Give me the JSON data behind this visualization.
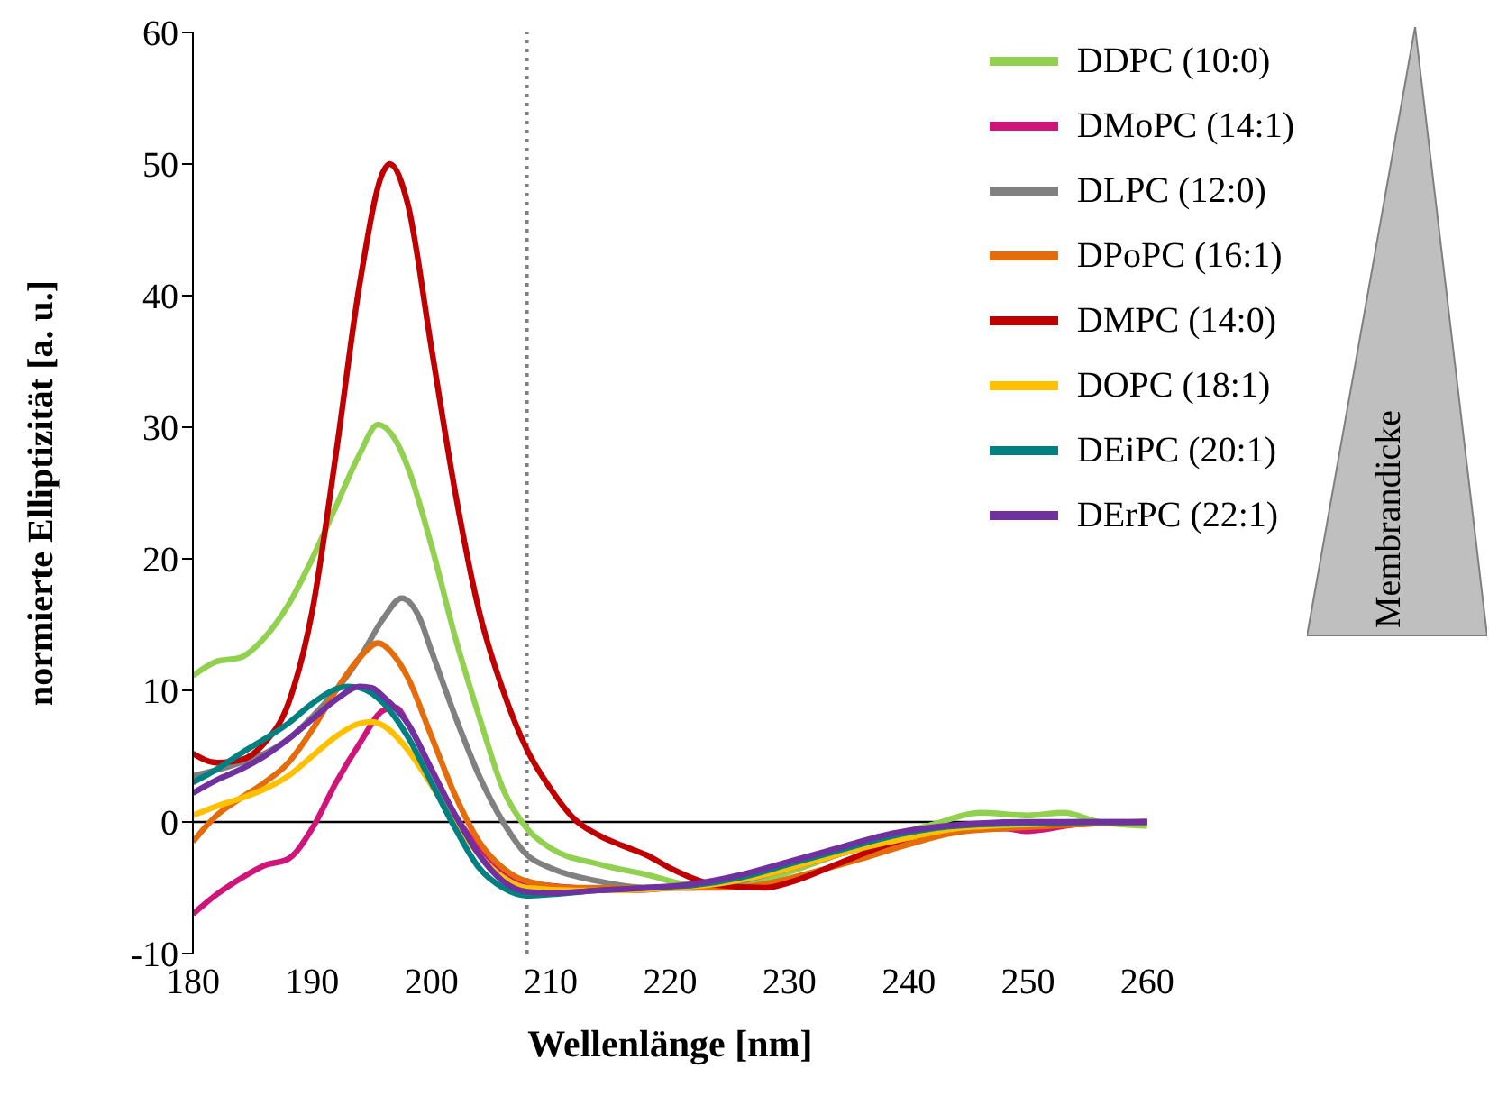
{
  "chart_data": {
    "type": "line",
    "xlabel": "Wellenlänge [nm]",
    "ylabel": "normierte Elliptizität [a. u.]",
    "xlim": [
      180,
      260
    ],
    "xticks": [
      180,
      190,
      200,
      210,
      220,
      230,
      240,
      250,
      260
    ],
    "ylim": [
      -10,
      60
    ],
    "yticks": [
      -10,
      0,
      10,
      20,
      30,
      40,
      50,
      60
    ],
    "grid": false,
    "legend": "top right",
    "marker": "none",
    "line_style": "solid",
    "ref_lines": [
      {
        "axis": "y",
        "value": 0,
        "color": "#000000",
        "line_style": "solid"
      },
      {
        "axis": "x",
        "value": 208,
        "color": "#808080",
        "line_style": "dotted"
      }
    ],
    "annotations": [
      "Membrandicke"
    ],
    "series": [
      {
        "name": "DDPC (10:0)",
        "color": "#92d050",
        "x": [
          180,
          182,
          184,
          186,
          188,
          190,
          192,
          194,
          195.5,
          197,
          198,
          200,
          202,
          204,
          206,
          208,
          210,
          214,
          218,
          222,
          226,
          230,
          234,
          238,
          242,
          246,
          250,
          253,
          256,
          260
        ],
        "values": [
          11.1,
          12.2,
          12.5,
          14,
          16.5,
          20,
          24,
          28,
          30.2,
          29,
          27,
          21,
          14,
          8,
          2.5,
          -0.5,
          -2,
          -3.2,
          -4,
          -4.8,
          -4.8,
          -3.8,
          -2.5,
          -1.2,
          -0.2,
          0.7,
          0.5,
          0.7,
          0,
          -0.3
        ]
      },
      {
        "name": "DMoPC (14:1)",
        "color": "#d0157a",
        "x": [
          180,
          182,
          184,
          186,
          188,
          190,
          192,
          194,
          196,
          197,
          198,
          200,
          202,
          204,
          206,
          208,
          212,
          216,
          220,
          224,
          228,
          232,
          236,
          240,
          244,
          248,
          250,
          254,
          260
        ],
        "values": [
          -7,
          -5.5,
          -4.3,
          -3.3,
          -2.8,
          -0.5,
          3,
          6,
          8.5,
          8.7,
          7.5,
          4,
          0.5,
          -2,
          -3.8,
          -4.6,
          -5,
          -5.2,
          -5,
          -4.5,
          -4,
          -3,
          -2,
          -1.2,
          -0.6,
          -0.5,
          -0.7,
          -0.2,
          0
        ]
      },
      {
        "name": "DLPC (12:0)",
        "color": "#808080",
        "x": [
          180,
          184,
          186,
          188,
          190,
          192,
          194,
          196,
          197.5,
          199,
          200,
          202,
          204,
          206,
          208,
          210,
          214,
          218,
          222,
          226,
          230,
          234,
          238,
          242,
          246,
          250,
          254,
          260
        ],
        "values": [
          3.5,
          4.5,
          5.2,
          6.3,
          8,
          10,
          12.5,
          15.5,
          17,
          15.5,
          13,
          8,
          3.5,
          0,
          -2.5,
          -3.5,
          -4.5,
          -5,
          -5,
          -4.5,
          -3.5,
          -2.5,
          -1.3,
          -0.5,
          -0.2,
          -0.2,
          0,
          0
        ]
      },
      {
        "name": "DPoPC (16:1)",
        "color": "#e46c0a",
        "x": [
          180,
          182,
          184,
          186,
          188,
          190,
          192,
          194,
          195.5,
          197,
          198,
          200,
          202,
          204,
          206,
          208,
          212,
          216,
          220,
          224,
          228,
          232,
          236,
          240,
          244,
          248,
          252,
          256,
          260
        ],
        "values": [
          -1.5,
          0.5,
          1.8,
          3,
          4.5,
          7,
          10,
          12.5,
          13.6,
          12.5,
          11,
          6.5,
          2,
          -1.5,
          -3.5,
          -4.5,
          -5,
          -5,
          -5,
          -5,
          -4.7,
          -3.8,
          -2.8,
          -1.7,
          -0.8,
          -0.5,
          -0.3,
          -0.1,
          0
        ]
      },
      {
        "name": "DMPC (14:0)",
        "color": "#c00000",
        "x": [
          180,
          182,
          184,
          186,
          188,
          190,
          192,
          194,
          196,
          196.5,
          198,
          200,
          202,
          204,
          206,
          208,
          210,
          212,
          214,
          216,
          218,
          220,
          224,
          228,
          230,
          234,
          238,
          242,
          246,
          250,
          260
        ],
        "values": [
          5.2,
          4.5,
          4.7,
          6,
          9,
          16,
          28,
          41,
          49.5,
          50,
          47,
          36,
          25,
          16,
          10,
          5.5,
          2.5,
          0.2,
          -1,
          -1.8,
          -2.5,
          -3.5,
          -4.8,
          -5,
          -4.6,
          -3.2,
          -1.8,
          -0.8,
          -0.3,
          -0.2,
          0
        ]
      },
      {
        "name": "DOPC (18:1)",
        "color": "#ffc000",
        "x": [
          180,
          182,
          184,
          186,
          188,
          190,
          192,
          194,
          195,
          196,
          198,
          200,
          202,
          204,
          206,
          208,
          212,
          216,
          220,
          224,
          228,
          232,
          236,
          240,
          244,
          250,
          260
        ],
        "values": [
          0.5,
          1.2,
          1.8,
          2.5,
          3.5,
          5,
          6.5,
          7.5,
          7.6,
          7.3,
          5.5,
          2.8,
          0,
          -2.5,
          -4.2,
          -5,
          -5.2,
          -5.2,
          -5,
          -4.7,
          -4,
          -3,
          -2,
          -1.2,
          -0.5,
          -0.2,
          0
        ]
      },
      {
        "name": "DEiPC (20:1)",
        "color": "#008080",
        "x": [
          180,
          182,
          184,
          186,
          188,
          190,
          192,
          193,
          194,
          196,
          198,
          200,
          202,
          204,
          206,
          208,
          210,
          214,
          218,
          222,
          226,
          230,
          234,
          238,
          242,
          246,
          250,
          260
        ],
        "values": [
          3,
          4,
          5.2,
          6.3,
          7.5,
          9,
          10.1,
          10.3,
          10.2,
          9,
          6.5,
          3,
          -0.5,
          -3.5,
          -5,
          -5.6,
          -5.5,
          -5.2,
          -5,
          -4.8,
          -4.2,
          -3.2,
          -2.2,
          -1.2,
          -0.5,
          -0.2,
          -0.1,
          0
        ]
      },
      {
        "name": "DErPC (22:1)",
        "color": "#7030a0",
        "x": [
          180,
          182,
          184,
          186,
          188,
          190,
          192,
          194,
          195,
          196,
          198,
          200,
          202,
          204,
          206,
          208,
          210,
          214,
          218,
          222,
          226,
          230,
          234,
          238,
          242,
          246,
          250,
          260
        ],
        "values": [
          2.2,
          3.2,
          4,
          5,
          6.3,
          7.8,
          9.3,
          10.3,
          10.2,
          9.5,
          7.5,
          4,
          0.5,
          -2.5,
          -4.5,
          -5.3,
          -5.4,
          -5.2,
          -5,
          -4.7,
          -4,
          -3,
          -2,
          -1,
          -0.4,
          -0.1,
          0,
          0
        ]
      }
    ]
  }
}
